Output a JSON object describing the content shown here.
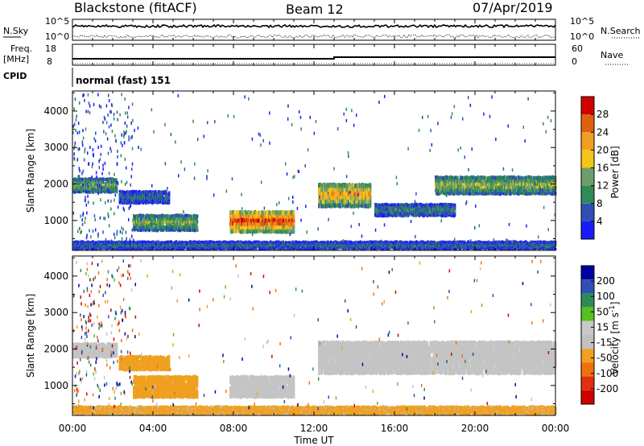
{
  "header": {
    "station": "Blackstone (fitACF)",
    "beam": "Beam 12",
    "date": "07/Apr/2019"
  },
  "top_panels": {
    "nsky_label": "N.Sky",
    "nsearch_label": "N.Search",
    "nsky_ticks": [
      "10^5",
      "10^0"
    ],
    "nsearch_ticks": [
      "10^5",
      "10^0"
    ],
    "freq_label_1": "Freq.",
    "freq_label_2": "[MHz]",
    "freq_ticks": [
      "18",
      "8"
    ],
    "nave_label": "Nave",
    "nave_ticks": [
      "60",
      "0"
    ],
    "cpid_label": "CPID",
    "cpid_value": "normal (fast) 151"
  },
  "colors": {
    "power_scale": [
      "#1a1aff",
      "#2f4fb5",
      "#2e8b57",
      "#6b9e6b",
      "#f5c518",
      "#f0a020",
      "#e06010",
      "#d00000"
    ],
    "velocity_scale": [
      "#0000a0",
      "#2f4fb5",
      "#2e8b57",
      "#55c020",
      "#c8c8c8",
      "#c0c0c0",
      "#f0a020",
      "#f07010",
      "#e03010",
      "#d00000"
    ],
    "velocity_gray": "#c4c4c4"
  },
  "chart_data": [
    {
      "type": "heatmap",
      "name": "power",
      "ylabel": "Slant Range [km]",
      "xlabel": "Time UT",
      "xlim": [
        "00:00",
        "00:00"
      ],
      "ylim": [
        180,
        4550
      ],
      "x_ticks": [
        "00:00",
        "04:00",
        "08:00",
        "12:00",
        "16:00",
        "20:00",
        "00:00"
      ],
      "y_ticks": [
        "1000",
        "2000",
        "3000",
        "4000"
      ],
      "colorbar_label": "Power [dB]",
      "colorbar_ticks": [
        "4",
        "8",
        "12",
        "16",
        "20",
        "24",
        "28"
      ],
      "regions": [
        {
          "t0": 0.0,
          "t1": 2.2,
          "r0": 1750,
          "r1": 2150,
          "level": 0.45
        },
        {
          "t0": 2.3,
          "t1": 4.8,
          "r0": 1450,
          "r1": 1800,
          "level": 0.25
        },
        {
          "t0": 3.0,
          "t1": 6.2,
          "r0": 700,
          "r1": 1150,
          "level": 0.45
        },
        {
          "t0": 7.8,
          "t1": 11.0,
          "r0": 650,
          "r1": 1250,
          "level": 0.9
        },
        {
          "t0": 12.2,
          "t1": 14.8,
          "r0": 1350,
          "r1": 2000,
          "level": 0.7
        },
        {
          "t0": 15.0,
          "t1": 19.0,
          "r0": 1100,
          "r1": 1450,
          "level": 0.3
        },
        {
          "t0": 18.0,
          "t1": 24.0,
          "r0": 1700,
          "r1": 2200,
          "level": 0.5
        },
        {
          "t0": 0.0,
          "t1": 24.0,
          "r0": 200,
          "r1": 420,
          "level": 0.25
        }
      ]
    },
    {
      "type": "heatmap",
      "name": "velocity",
      "ylabel": "Slant Range [km]",
      "xlabel": "Time UT",
      "xlim": [
        "00:00",
        "00:00"
      ],
      "ylim": [
        180,
        4550
      ],
      "x_ticks": [
        "00:00",
        "04:00",
        "08:00",
        "12:00",
        "16:00",
        "20:00",
        "00:00"
      ],
      "y_ticks": [
        "1000",
        "2000",
        "3000",
        "4000"
      ],
      "colorbar_label": "Velocity [m s-1]",
      "colorbar_ticks": [
        "200",
        "100",
        "50",
        "15",
        "-15",
        "-50",
        "-100",
        "-200"
      ],
      "regions": [
        {
          "t0": 0.0,
          "t1": 2.2,
          "r0": 1750,
          "r1": 2150,
          "value": 0
        },
        {
          "t0": 2.3,
          "t1": 4.8,
          "r0": 1400,
          "r1": 1800,
          "value": -60
        },
        {
          "t0": 3.0,
          "t1": 6.2,
          "r0": 650,
          "r1": 1250,
          "value": -55
        },
        {
          "t0": 7.8,
          "t1": 11.0,
          "r0": 650,
          "r1": 1250,
          "value": 0
        },
        {
          "t0": 12.2,
          "t1": 24.0,
          "r0": 1300,
          "r1": 2200,
          "value": 0
        },
        {
          "t0": 0.0,
          "t1": 24.0,
          "r0": 200,
          "r1": 420,
          "value": -40
        }
      ]
    }
  ]
}
